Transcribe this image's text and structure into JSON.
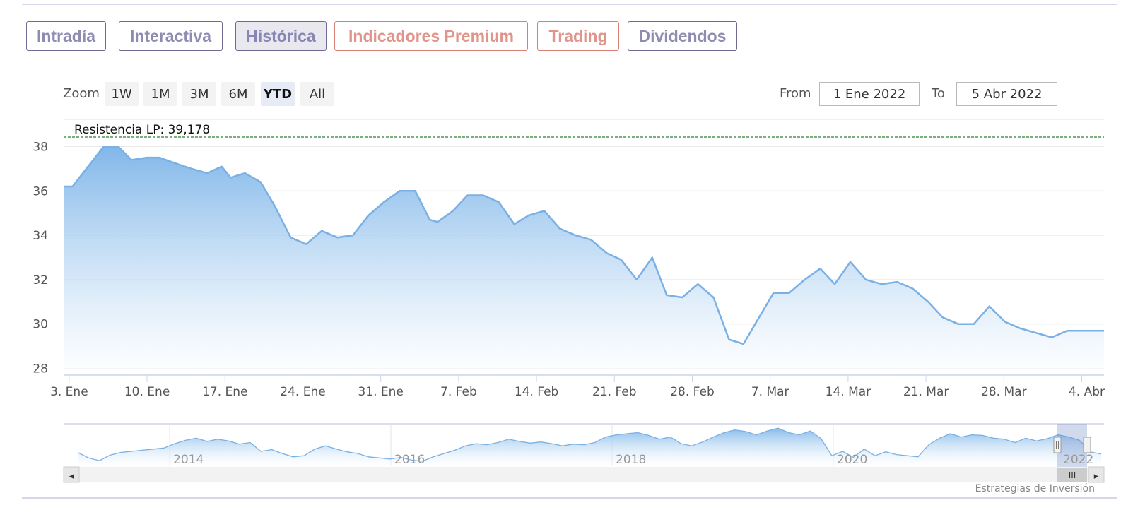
{
  "tabs": [
    "Intradía",
    "Interactiva",
    "Histórica",
    "Indicadores Premium",
    "Trading",
    "Dividendos"
  ],
  "active_tab": "Histórica",
  "zoom": {
    "label": "Zoom",
    "buttons": [
      "1W",
      "1M",
      "3M",
      "6M",
      "YTD",
      "All"
    ],
    "active": "YTD"
  },
  "range": {
    "from_label": "From",
    "from_value": "1 Ene 2022",
    "to_label": "To",
    "to_value": "5 Abr 2022"
  },
  "colors": {
    "line": "#7ab0e3",
    "area_top": "#7ab3e8",
    "area_bottom": "#ffffff",
    "resistance": "#2e7d32",
    "tab_normal": "#8f8cb2",
    "tab_premium": "#e0948a"
  },
  "chart_data": {
    "type": "area",
    "title": "",
    "xlabel": "",
    "ylabel": "",
    "ylim": [
      27.7,
      38.3
    ],
    "y_ticks": [
      28,
      30,
      32,
      34,
      36,
      38
    ],
    "x_ticks": [
      "3. Ene",
      "10. Ene",
      "17. Ene",
      "24. Ene",
      "31. Ene",
      "7. Feb",
      "14. Feb",
      "21. Feb",
      "28. Feb",
      "7. Mar",
      "14. Mar",
      "21. Mar",
      "28. Mar",
      "4. Abr"
    ],
    "x_tick_days": [
      2,
      9,
      16,
      23,
      30,
      37,
      44,
      51,
      58,
      65,
      72,
      79,
      86,
      93
    ],
    "xlim_days": [
      1.5,
      95
    ],
    "grid": true,
    "legend": "none",
    "annotation": {
      "text": "Resistencia LP: 39,178",
      "value": 39.178
    },
    "series": [
      {
        "x_days": [
          1.5,
          2.3,
          3.7,
          5.1,
          6.4,
          7.6,
          9.0,
          10.1,
          11.8,
          13.0,
          14.4,
          15.7,
          16.5,
          17.8,
          19.2,
          20.5,
          21.9,
          23.3,
          24.7,
          26.1,
          27.5,
          28.9,
          30.3,
          31.7,
          33.1,
          34.4,
          35.1,
          36.5,
          37.8,
          39.2,
          40.6,
          42.0,
          43.3,
          44.7,
          46.1,
          47.5,
          48.9,
          50.3,
          51.6,
          53.0,
          54.4,
          55.7,
          57.1,
          58.5,
          59.9,
          61.3,
          62.6,
          64.0,
          65.3,
          66.7,
          68.1,
          69.5,
          70.8,
          72.2,
          73.6,
          75.0,
          76.4,
          77.8,
          79.2,
          80.5,
          81.9,
          83.3,
          84.7,
          86.1,
          87.5,
          88.9,
          90.3,
          91.7,
          93.1,
          94.5,
          95.0
        ],
        "values": [
          36.2,
          36.2,
          37.1,
          38.0,
          38.0,
          37.4,
          37.5,
          37.5,
          37.2,
          37.0,
          36.8,
          37.1,
          36.6,
          36.8,
          36.4,
          35.3,
          33.9,
          33.6,
          34.2,
          33.9,
          34.0,
          34.9,
          35.5,
          36.0,
          36.0,
          34.7,
          34.6,
          35.1,
          35.8,
          35.8,
          35.5,
          34.5,
          34.9,
          35.1,
          34.3,
          34.0,
          33.8,
          33.2,
          32.9,
          32.0,
          33.0,
          31.3,
          31.2,
          31.8,
          31.2,
          29.3,
          29.1,
          30.3,
          31.4,
          31.4,
          32.0,
          32.5,
          31.8,
          32.8,
          32.0,
          31.8,
          31.9,
          31.6,
          31.0,
          30.3,
          30.0,
          30.0,
          30.8,
          30.1,
          29.8,
          29.6,
          29.4,
          29.7,
          29.7,
          29.7,
          29.7
        ]
      }
    ]
  },
  "navigator": {
    "year_labels": [
      "2014",
      "2016",
      "2018",
      "2020",
      "2022"
    ],
    "values": [
      30,
      29,
      28.5,
      29.5,
      30,
      30.2,
      30.4,
      30.6,
      30.8,
      31.6,
      32.2,
      32.6,
      32,
      32.4,
      32.1,
      31.5,
      31.8,
      30.2,
      30.5,
      29.8,
      29.2,
      29.4,
      30.6,
      31.2,
      30.6,
      30.1,
      29.8,
      29.2,
      29,
      28.8,
      29.1,
      28.6,
      28.4,
      29.2,
      29.8,
      30.4,
      31.2,
      31.6,
      31.4,
      31.8,
      32.4,
      32,
      31.7,
      31.9,
      31.6,
      31.2,
      31.5,
      31.4,
      31.8,
      32.8,
      33.2,
      33.4,
      33.6,
      33.1,
      32.4,
      32.8,
      31.6,
      31.2,
      31.9,
      32.8,
      33.6,
      34.1,
      33.8,
      33.2,
      33.9,
      34.4,
      33.6,
      33.2,
      33.9,
      32.5,
      29.4,
      30.2,
      29.1,
      30.6,
      29.4,
      30.1,
      29.6,
      29.4,
      29.2,
      31.4,
      32.6,
      33.4,
      32.8,
      33.2,
      33.1,
      32.6,
      32.4,
      31.8,
      32.6,
      32.1,
      32.5,
      33.2,
      32.8,
      32.2,
      30.1,
      29.7
    ],
    "ymin": 27.5,
    "ymax": 35.2,
    "nav_left_btn": "◂",
    "nav_right_btn": "▸",
    "grip": "III"
  },
  "credit": "Estrategias de Inversión"
}
